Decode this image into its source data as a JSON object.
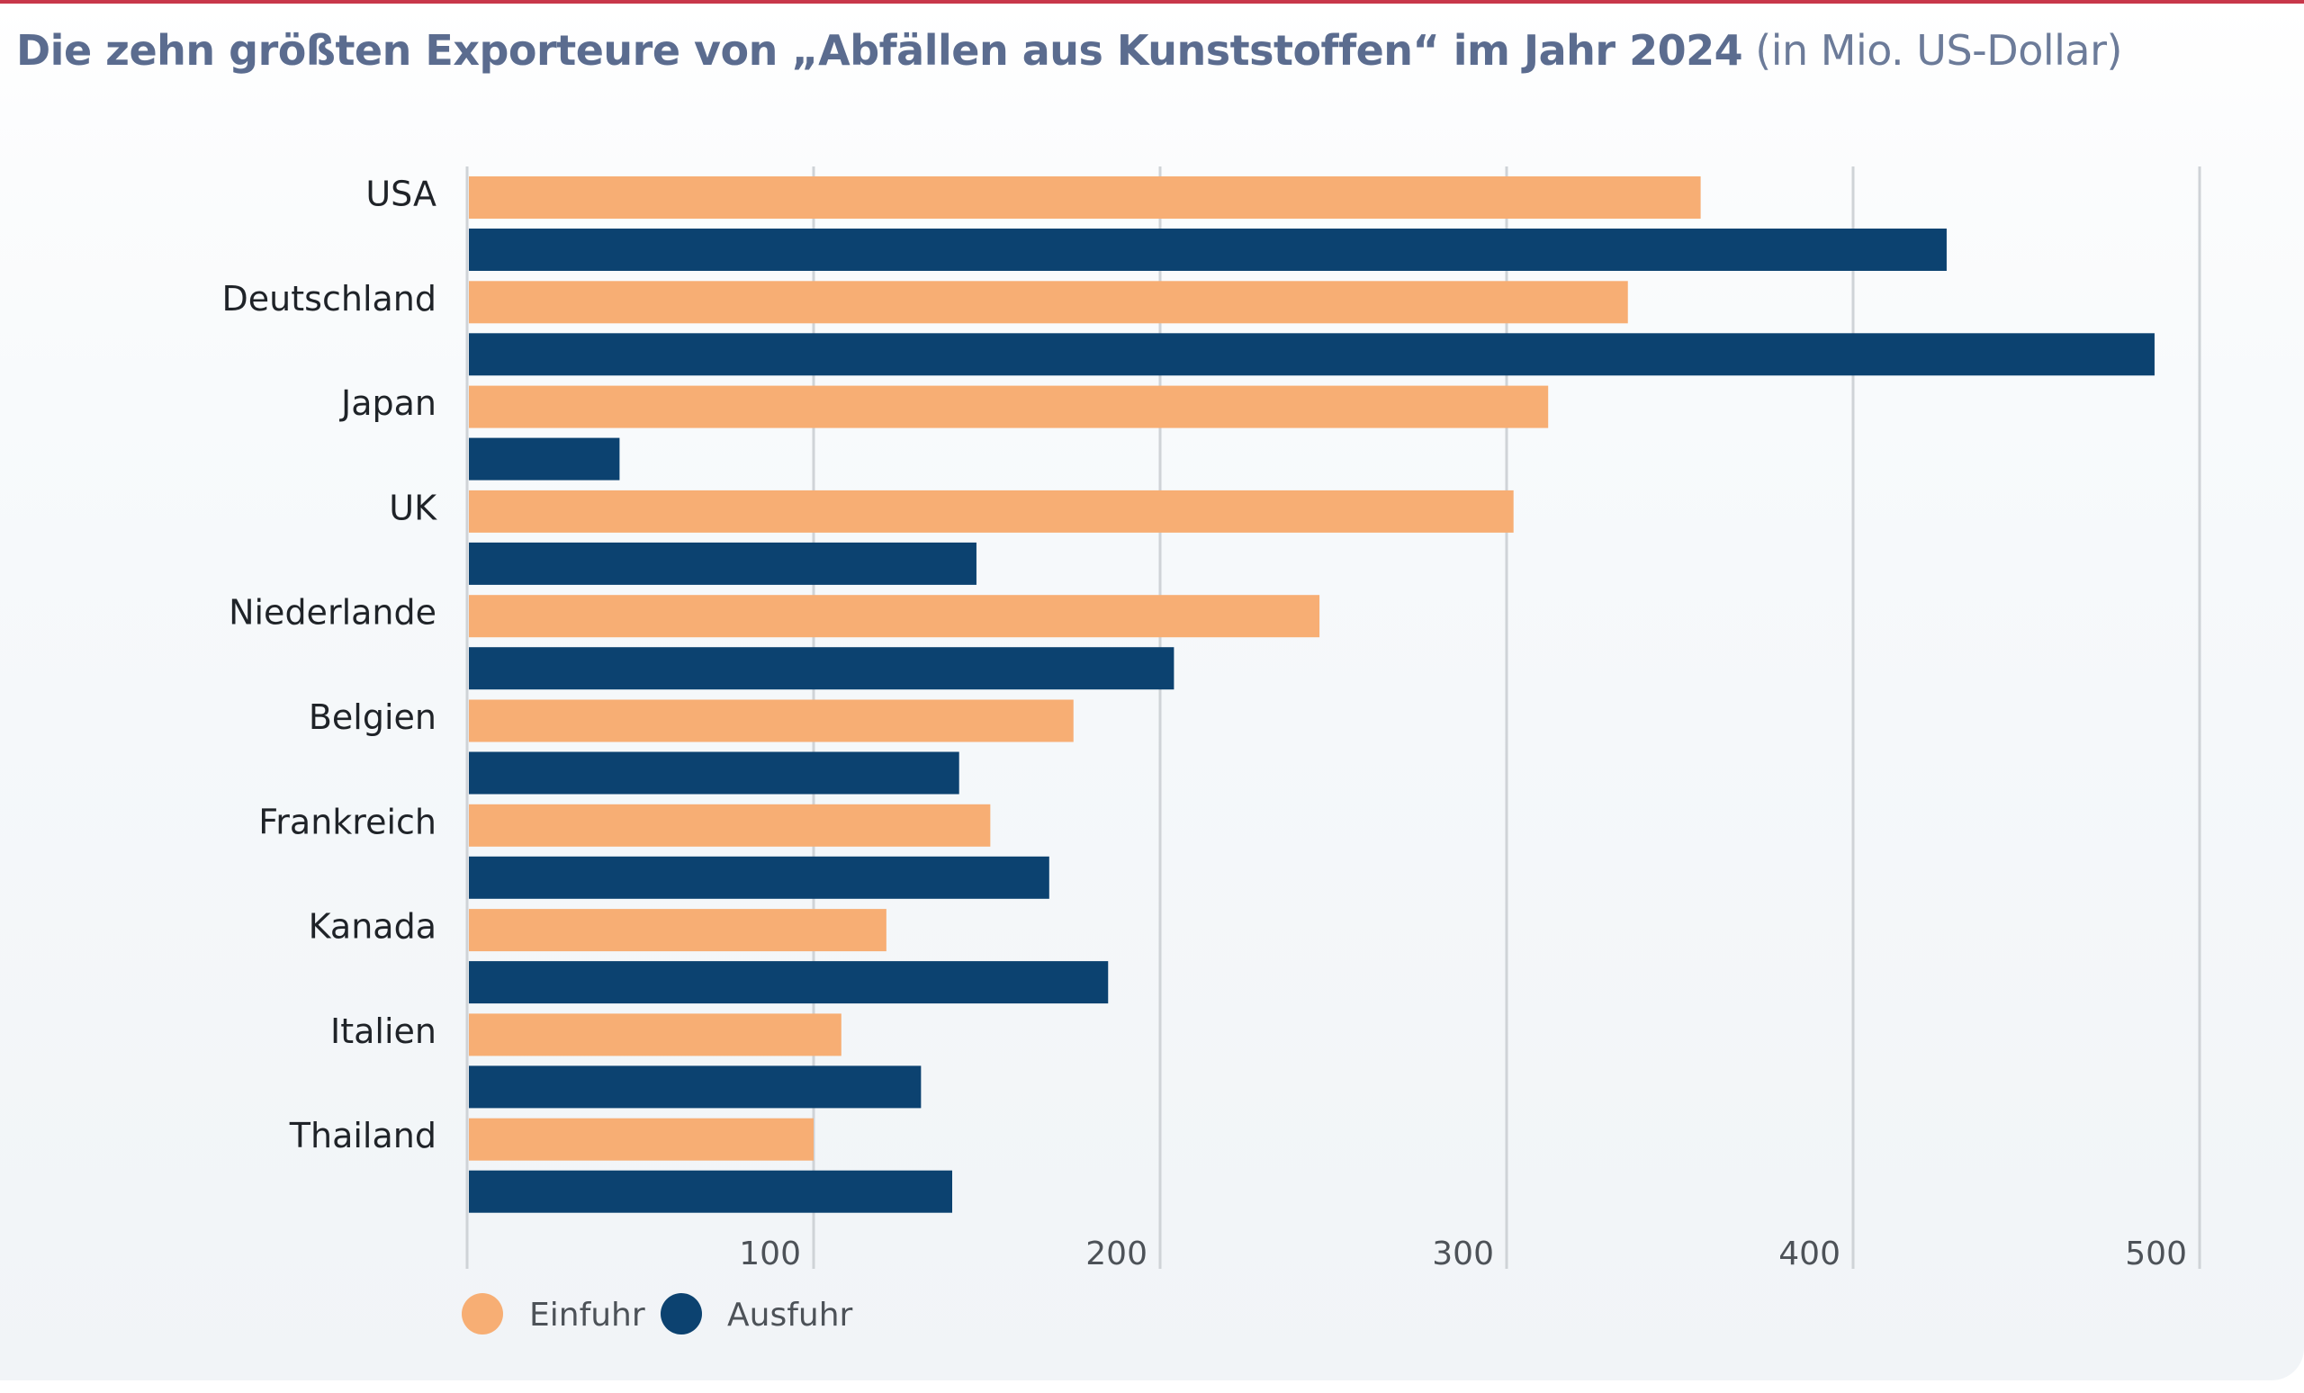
{
  "title": {
    "main": "Die zehn größten Exporteure von „Abfällen aus Kunststoffen“ im Jahr 2024",
    "unit": "(in Mio. US-Dollar)"
  },
  "colors": {
    "accent_stripe": "#c8374a",
    "einfuhr": "#f7ae74",
    "ausfuhr": "#0c4270",
    "gridline": "#cfd3d7",
    "title": "#5b6c8f"
  },
  "chart_data": {
    "type": "bar",
    "orientation": "horizontal",
    "title": "Die zehn größten Exporteure von „Abfällen aus Kunststoffen“ im Jahr 2024 (in Mio. US-Dollar)",
    "xlabel": "",
    "ylabel": "",
    "categories": [
      "USA",
      "Deutschland",
      "Japan",
      "UK",
      "Niederlande",
      "Belgien",
      "Frankreich",
      "Kanada",
      "Italien",
      "Thailand"
    ],
    "series": [
      {
        "name": "Einfuhr",
        "color": "#f7ae74",
        "values": [
          356,
          335,
          312,
          302,
          246,
          175,
          151,
          121,
          108,
          100
        ]
      },
      {
        "name": "Ausfuhr",
        "color": "#0c4270",
        "values": [
          427,
          487,
          44,
          147,
          204,
          142,
          168,
          185,
          131,
          140
        ]
      }
    ],
    "xlim": [
      0,
      500
    ],
    "xticks": [
      100,
      200,
      300,
      400,
      500
    ],
    "xtick_labels": [
      "100",
      "200",
      "300",
      "400",
      "500"
    ],
    "grid": true,
    "legend": {
      "position": "bottom-left",
      "entries": [
        "Einfuhr",
        "Ausfuhr"
      ]
    }
  }
}
